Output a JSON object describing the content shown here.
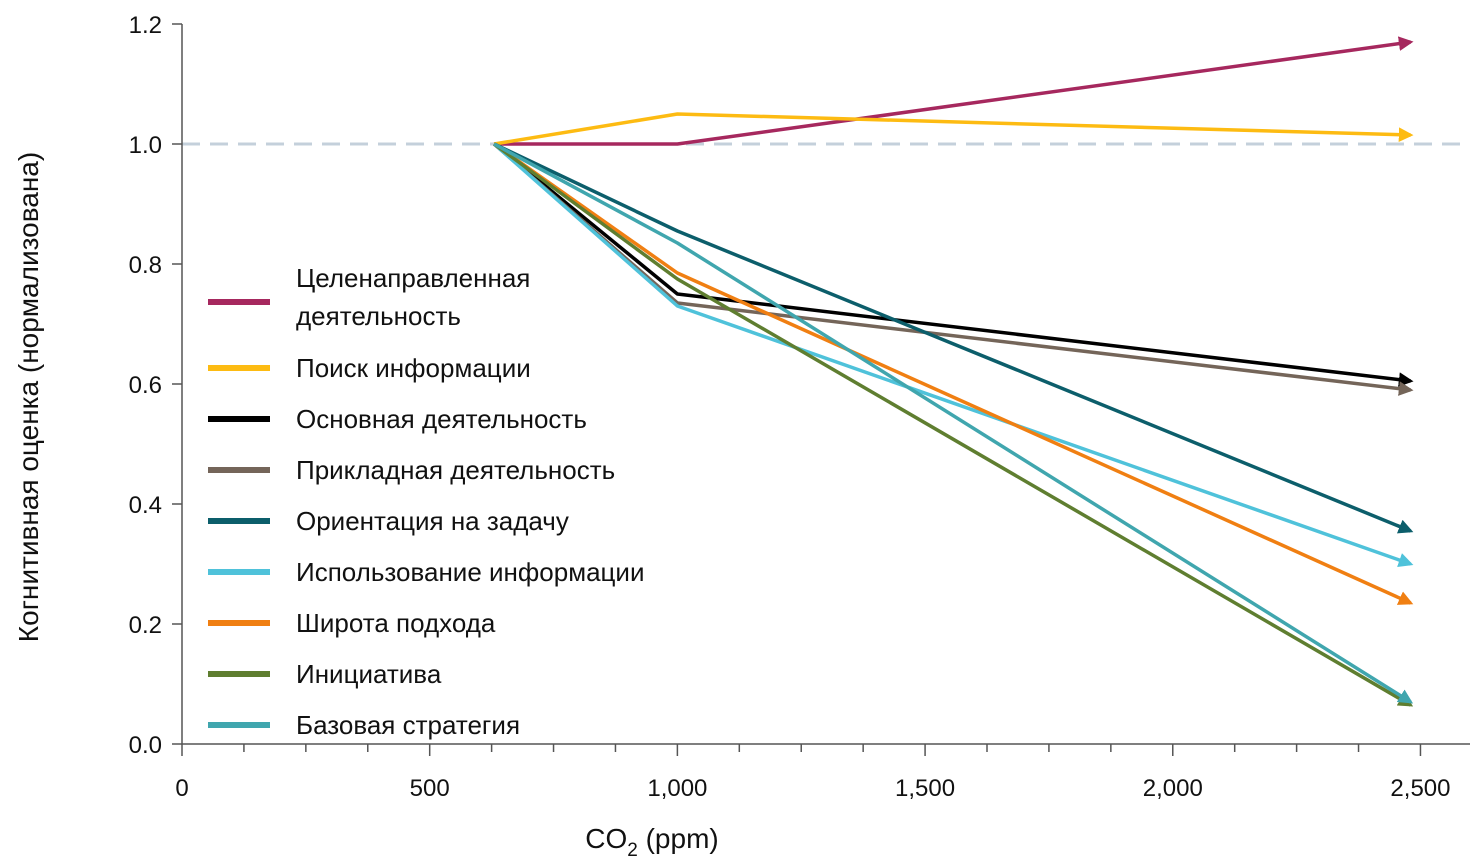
{
  "chart_data": {
    "type": "line",
    "title": "",
    "xlabel": "CO",
    "xlabel_subscript": "2",
    "xlabel_suffix": " (ppm)",
    "ylabel": "Когнитивная оценка (нормализована)",
    "xlim": [
      0,
      2600
    ],
    "ylim": [
      0,
      1.2
    ],
    "x_ticks": [
      0,
      500,
      1000,
      1500,
      2000,
      2500
    ],
    "x_tick_labels": [
      "0",
      "500",
      "1,000",
      "1,500",
      "2,000",
      "2,500"
    ],
    "y_ticks": [
      0,
      0.2,
      0.4,
      0.6,
      0.8,
      1.0,
      1.2
    ],
    "y_tick_labels": [
      "0.0",
      "0.2",
      "0.4",
      "0.6",
      "0.8",
      "1.0",
      "1.2"
    ],
    "x": [
      630,
      1000,
      2480
    ],
    "reference_line": {
      "y": 1.0,
      "style": "dashed",
      "color": "#c4d0db"
    },
    "grid": false,
    "legend_position": "center-left",
    "series": [
      {
        "name": [
          "Целенаправленная",
          "деятельность"
        ],
        "color": "#a6285e",
        "values": [
          1.0,
          1.0,
          1.17
        ]
      },
      {
        "name": [
          "Поиск информации"
        ],
        "color": "#fdbb12",
        "values": [
          1.0,
          1.05,
          1.015
        ]
      },
      {
        "name": [
          "Основная деятельность"
        ],
        "color": "#000000",
        "values": [
          1.0,
          0.75,
          0.605
        ]
      },
      {
        "name": [
          "Прикладная деятельность"
        ],
        "color": "#746559",
        "values": [
          1.0,
          0.735,
          0.59
        ]
      },
      {
        "name": [
          "Ориентация на задачу"
        ],
        "color": "#0c5e6b",
        "values": [
          1.0,
          0.855,
          0.355
        ]
      },
      {
        "name": [
          "Использование информации"
        ],
        "color": "#4fc2da",
        "values": [
          1.0,
          0.73,
          0.3
        ]
      },
      {
        "name": [
          "Широта подхода"
        ],
        "color": "#f07f12",
        "values": [
          1.0,
          0.785,
          0.235
        ]
      },
      {
        "name": [
          "Инициатива"
        ],
        "color": "#5f7e30",
        "values": [
          1.0,
          0.775,
          0.065
        ]
      },
      {
        "name": [
          "Базовая стратегия"
        ],
        "color": "#40a6ae",
        "values": [
          1.0,
          0.835,
          0.07
        ]
      }
    ]
  }
}
